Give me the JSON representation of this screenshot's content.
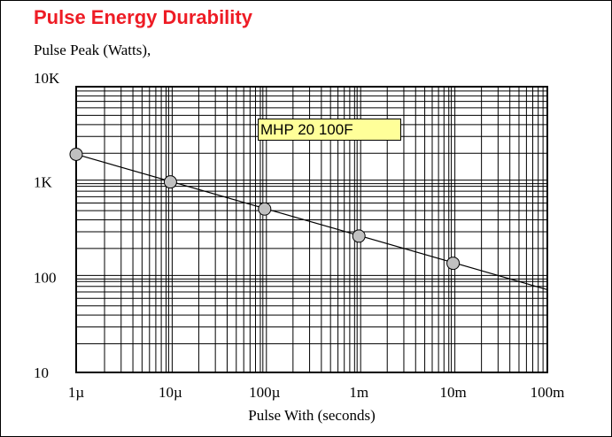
{
  "chart_data": {
    "type": "line",
    "title": "Pulse Energy Durability",
    "ylabel": "Pulse Peak (Watts),",
    "xlabel": "Pulse With (seconds)",
    "x_scale": "log",
    "y_scale": "log",
    "xlim": [
      1e-06,
      0.1
    ],
    "ylim": [
      10,
      10000
    ],
    "x_ticks": [
      {
        "value": 1e-06,
        "label": "1µ"
      },
      {
        "value": 1e-05,
        "label": "10µ"
      },
      {
        "value": 0.0001,
        "label": "100µ"
      },
      {
        "value": 0.001,
        "label": "1m"
      },
      {
        "value": 0.01,
        "label": "10m"
      },
      {
        "value": 0.1,
        "label": "100m"
      }
    ],
    "y_ticks": [
      {
        "value": 10,
        "label": "10"
      },
      {
        "value": 100,
        "label": "100"
      },
      {
        "value": 1000,
        "label": "1K"
      },
      {
        "value": 10000,
        "label": "10K"
      }
    ],
    "grid": true,
    "series": [
      {
        "name": "MHP 20 100F",
        "line_color": "#000000",
        "marker_color": "#c0c0c0",
        "line": {
          "x": [
            1e-06,
            0.1
          ],
          "y": [
            1950,
            74
          ]
        },
        "points": {
          "x": [
            1e-06,
            1e-05,
            0.0001,
            0.001,
            0.01
          ],
          "y": [
            1950,
            1000,
            520,
            270,
            140
          ]
        }
      }
    ],
    "legend": {
      "text": "MHP 20 100F",
      "placement": "top-center",
      "background": "#ffff99"
    }
  }
}
